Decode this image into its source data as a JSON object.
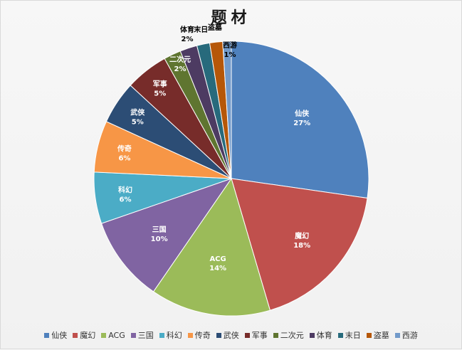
{
  "chart_data": {
    "type": "pie",
    "title": "题材",
    "categories": [
      "仙侠",
      "魔幻",
      "ACG",
      "三国",
      "科幻",
      "传奇",
      "武侠",
      "军事",
      "二次元",
      "体育",
      "末日",
      "盗墓",
      "西游"
    ],
    "values": [
      27,
      18,
      14,
      10,
      6,
      6,
      5,
      5,
      2,
      2,
      1.5,
      1.5,
      1
    ],
    "value_labels": [
      "27%",
      "18%",
      "14%",
      "10%",
      "6%",
      "6%",
      "5%",
      "5%",
      "2%",
      "2%",
      "",
      "",
      "1%"
    ],
    "colors": [
      "#4f81bd",
      "#c0504d",
      "#9bbb59",
      "#8064a2",
      "#4bacc6",
      "#f79646",
      "#2c4d75",
      "#772c2a",
      "#5f7530",
      "#4d3b62",
      "#276a7c",
      "#b65708",
      "#729aca"
    ],
    "label_colors": [
      "#ffffff",
      "#ffffff",
      "#ffffff",
      "#ffffff",
      "#ffffff",
      "#ffffff",
      "#ffffff",
      "#ffffff",
      "#ffffff",
      "#000000",
      "#000000",
      "#000000",
      "#000000"
    ],
    "legend_position": "bottom",
    "start_angle": "12 o'clock",
    "direction": "clockwise"
  }
}
